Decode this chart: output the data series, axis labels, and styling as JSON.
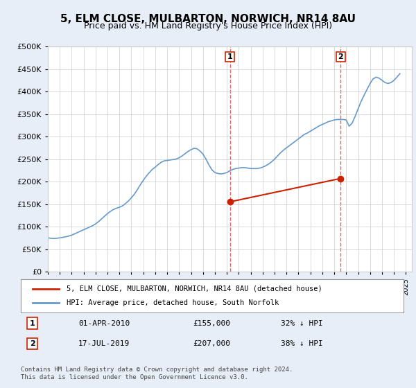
{
  "title": "5, ELM CLOSE, MULBARTON, NORWICH, NR14 8AU",
  "subtitle": "Price paid vs. HM Land Registry's House Price Index (HPI)",
  "hpi_color": "#6699cc",
  "price_color": "#cc2200",
  "marker_color": "#cc2200",
  "dashed_color": "#cc4444",
  "background_color": "#e8eef8",
  "plot_bg_color": "#ffffff",
  "legend_border_color": "#999999",
  "ylim": [
    0,
    500000
  ],
  "yticks": [
    0,
    50000,
    100000,
    150000,
    200000,
    250000,
    300000,
    350000,
    400000,
    450000,
    500000
  ],
  "ytick_labels": [
    "£0",
    "£50K",
    "£100K",
    "£150K",
    "£200K",
    "£250K",
    "£300K",
    "£350K",
    "£400K",
    "£450K",
    "£500K"
  ],
  "xlim_start": 1995.0,
  "xlim_end": 2025.5,
  "point1_x": 2010.25,
  "point1_y": 155000,
  "point1_label": "1",
  "point1_date": "01-APR-2010",
  "point1_price": "£155,000",
  "point1_pct": "32% ↓ HPI",
  "point2_x": 2019.54,
  "point2_y": 207000,
  "point2_label": "2",
  "point2_date": "17-JUL-2019",
  "point2_price": "£207,000",
  "point2_pct": "38% ↓ HPI",
  "legend_line1": "5, ELM CLOSE, MULBARTON, NORWICH, NR14 8AU (detached house)",
  "legend_line2": "HPI: Average price, detached house, South Norfolk",
  "footer": "Contains HM Land Registry data © Crown copyright and database right 2024.\nThis data is licensed under the Open Government Licence v3.0.",
  "hpi_x": [
    1995.0,
    1995.25,
    1995.5,
    1995.75,
    1996.0,
    1996.25,
    1996.5,
    1996.75,
    1997.0,
    1997.25,
    1997.5,
    1997.75,
    1998.0,
    1998.25,
    1998.5,
    1998.75,
    1999.0,
    1999.25,
    1999.5,
    1999.75,
    2000.0,
    2000.25,
    2000.5,
    2000.75,
    2001.0,
    2001.25,
    2001.5,
    2001.75,
    2002.0,
    2002.25,
    2002.5,
    2002.75,
    2003.0,
    2003.25,
    2003.5,
    2003.75,
    2004.0,
    2004.25,
    2004.5,
    2004.75,
    2005.0,
    2005.25,
    2005.5,
    2005.75,
    2006.0,
    2006.25,
    2006.5,
    2006.75,
    2007.0,
    2007.25,
    2007.5,
    2007.75,
    2008.0,
    2008.25,
    2008.5,
    2008.75,
    2009.0,
    2009.25,
    2009.5,
    2009.75,
    2010.0,
    2010.25,
    2010.5,
    2010.75,
    2011.0,
    2011.25,
    2011.5,
    2011.75,
    2012.0,
    2012.25,
    2012.5,
    2012.75,
    2013.0,
    2013.25,
    2013.5,
    2013.75,
    2014.0,
    2014.25,
    2014.5,
    2014.75,
    2015.0,
    2015.25,
    2015.5,
    2015.75,
    2016.0,
    2016.25,
    2016.5,
    2016.75,
    2017.0,
    2017.25,
    2017.5,
    2017.75,
    2018.0,
    2018.25,
    2018.5,
    2018.75,
    2019.0,
    2019.25,
    2019.5,
    2019.75,
    2020.0,
    2020.25,
    2020.5,
    2020.75,
    2021.0,
    2021.25,
    2021.5,
    2021.75,
    2022.0,
    2022.25,
    2022.5,
    2022.75,
    2023.0,
    2023.25,
    2023.5,
    2023.75,
    2024.0,
    2024.25,
    2024.5
  ],
  "hpi_y": [
    75000,
    74000,
    73500,
    74000,
    75000,
    76000,
    77500,
    79000,
    81000,
    84000,
    87000,
    90000,
    93000,
    96000,
    99000,
    102000,
    106000,
    111000,
    117000,
    123000,
    129000,
    134000,
    138000,
    141000,
    143000,
    146000,
    151000,
    157000,
    164000,
    172000,
    182000,
    193000,
    203000,
    212000,
    220000,
    227000,
    232000,
    238000,
    243000,
    246000,
    247000,
    248000,
    249000,
    250000,
    253000,
    257000,
    262000,
    267000,
    271000,
    274000,
    273000,
    268000,
    261000,
    250000,
    237000,
    226000,
    220000,
    218000,
    217000,
    218000,
    220000,
    224000,
    227000,
    229000,
    230000,
    231000,
    231000,
    230000,
    229000,
    229000,
    229000,
    230000,
    232000,
    235000,
    239000,
    244000,
    250000,
    257000,
    264000,
    270000,
    275000,
    280000,
    285000,
    290000,
    295000,
    300000,
    305000,
    308000,
    312000,
    316000,
    320000,
    324000,
    327000,
    330000,
    333000,
    335000,
    337000,
    338000,
    338000,
    338000,
    337000,
    323000,
    330000,
    345000,
    362000,
    378000,
    392000,
    405000,
    418000,
    428000,
    432000,
    430000,
    425000,
    420000,
    418000,
    420000,
    425000,
    432000,
    440000
  ]
}
